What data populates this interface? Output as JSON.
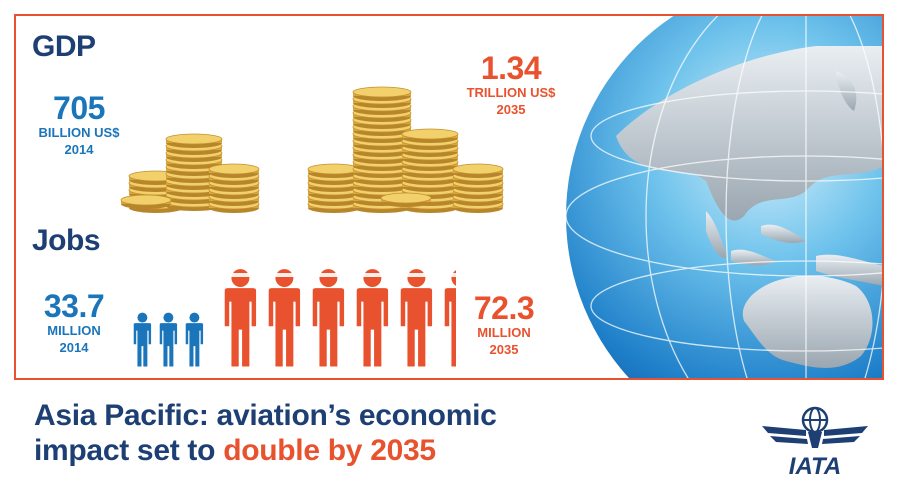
{
  "gdp": {
    "heading": "GDP",
    "left": {
      "value": "705",
      "unit": "BILLION US$",
      "year": "2014"
    },
    "right": {
      "value": "1.34",
      "unit": "TRILLION US$",
      "year": "2035"
    }
  },
  "jobs": {
    "heading": "Jobs",
    "left": {
      "value": "33.7",
      "unit": "MILLION",
      "year": "2014"
    },
    "right": {
      "value": "72.3",
      "unit": "MILLION",
      "year": "2035"
    }
  },
  "title": {
    "line1": "Asia Pacific: aviation’s economic",
    "line2_prefix": "impact set to ",
    "line2_highlight": "double by 2035"
  },
  "logo": {
    "text": "IATA"
  },
  "colors": {
    "blue": "#1a75ba",
    "orange": "#e8522e",
    "navy": "#1d3f73",
    "gold": "#e0b43c"
  }
}
